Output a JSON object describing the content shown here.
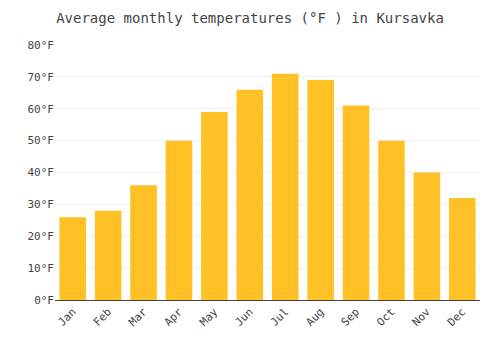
{
  "chart_data": {
    "type": "bar",
    "title": "Average monthly temperatures (°F ) in Kursavka",
    "categories": [
      "Jan",
      "Feb",
      "Mar",
      "Apr",
      "May",
      "Jun",
      "Jul",
      "Aug",
      "Sep",
      "Oct",
      "Nov",
      "Dec"
    ],
    "values": [
      26,
      28,
      36,
      50,
      59,
      66,
      71,
      69,
      61,
      50,
      40,
      32
    ],
    "color": "#FFC125",
    "ylim": [
      0,
      80
    ],
    "yticks": [
      {
        "value": 0,
        "label": "0°F"
      },
      {
        "value": 10,
        "label": "10°F"
      },
      {
        "value": 20,
        "label": "20°F"
      },
      {
        "value": 30,
        "label": "30°F"
      },
      {
        "value": 40,
        "label": "40°F"
      },
      {
        "value": 50,
        "label": "50°F"
      },
      {
        "value": 60,
        "label": "60°F"
      },
      {
        "value": 70,
        "label": "70°F"
      },
      {
        "value": 80,
        "label": "80°F"
      }
    ],
    "grid": true
  }
}
